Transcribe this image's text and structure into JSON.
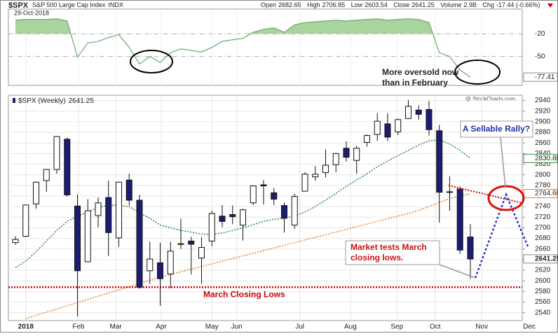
{
  "header": {
    "symbol": "$SPX",
    "name": "S&P 500 Large Cap Index",
    "exchange": "INDX",
    "date": "29-Oct-2018",
    "open_label": "Open",
    "high_label": "High",
    "low_label": "Low",
    "close_label": "Close",
    "volume_label": "Volume",
    "volume": "2.9B",
    "chg_label": "Chg",
    "chg": "-17.44 (-0.66%)",
    "credit": "@ StockCharts.com"
  },
  "annotations": {
    "oversold": [
      "More oversold now",
      "than in February"
    ],
    "rally": "A Sellable Rally?",
    "tests": [
      "Market tests March",
      "closing lows."
    ]
  },
  "chart_data": [
    {
      "type": "line",
      "x": [
        0,
        1,
        2,
        3,
        4,
        5,
        6,
        7,
        8,
        9,
        10,
        11,
        12,
        13,
        14,
        15,
        16,
        17,
        18,
        19,
        20,
        21,
        22,
        23,
        24,
        25,
        26,
        27,
        28,
        29,
        30,
        31,
        32,
        33,
        34,
        35,
        36,
        37,
        38,
        39,
        40,
        41,
        42,
        43,
        44
      ],
      "xlim": [
        -0.68,
        49.02
      ],
      "ylim": [
        -88.4,
        12.8
      ],
      "yticks": [
        -20,
        -50
      ],
      "shade_above": -20,
      "series": [
        {
          "color": "#6aa86a",
          "fill": "#a8d49e",
          "values": [
            -2,
            -1,
            -1,
            -1,
            0,
            -3,
            -51,
            -32,
            -30,
            -25,
            -21,
            -38,
            -60,
            -50,
            -58,
            -45,
            -40,
            -42,
            -44,
            -38,
            -30,
            -28,
            -26,
            -18,
            -14,
            -12,
            -18,
            -8,
            -5,
            -4,
            -3,
            -2,
            -3,
            -2,
            -1,
            0,
            -2,
            -1,
            0,
            -1,
            -5,
            -45,
            -50,
            -68,
            -77.41
          ]
        }
      ]
    },
    {
      "type": "candlestick",
      "legend": "$SPX (Weekly)",
      "x": [
        0,
        1,
        2,
        3,
        4,
        5,
        6,
        7,
        8,
        9,
        10,
        11,
        12,
        13,
        14,
        15,
        16,
        17,
        18,
        19,
        20,
        21,
        22,
        23,
        24,
        25,
        26,
        27,
        28,
        29,
        30,
        31,
        32,
        33,
        34,
        35,
        36,
        37,
        38,
        39,
        40,
        41,
        42,
        43,
        44
      ],
      "xlim": [
        -0.68,
        49.02
      ],
      "ylim": [
        2525,
        2950
      ],
      "yticks": [
        2540,
        2560,
        2580,
        2600,
        2620,
        2640,
        2660,
        2680,
        2700,
        2720,
        2740,
        2760,
        2780,
        2800,
        2820,
        2840,
        2860,
        2880,
        2900,
        2920,
        2940
      ],
      "xticks": [
        {
          "value": 1,
          "label": "2018"
        },
        {
          "value": 6.1,
          "label": "Feb"
        },
        {
          "value": 9.7,
          "label": "Mar"
        },
        {
          "value": 14.1,
          "label": "Apr"
        },
        {
          "value": 19,
          "label": "May"
        },
        {
          "value": 21.4,
          "label": "Jun"
        },
        {
          "value": 27.5,
          "label": "Jul"
        },
        {
          "value": 32.4,
          "label": "Aug"
        },
        {
          "value": 36.9,
          "label": "Sep"
        },
        {
          "value": 40.6,
          "label": "Oct"
        },
        {
          "value": 45.1,
          "label": "Nov"
        },
        {
          "value": 49.7,
          "label": "Dec"
        }
      ],
      "grid": true,
      "up_color": "#ffffff",
      "down_color": "#1c1c72",
      "series": [
        {
          "open": [
            2672,
            2684,
            2745,
            2789,
            2810,
            2867,
            2741,
            2636,
            2723,
            2757,
            2681,
            2790,
            2752,
            2619,
            2634,
            2613,
            2670,
            2675,
            2643,
            2675,
            2722,
            2725,
            2705,
            2747,
            2781,
            2766,
            2742,
            2705,
            2769,
            2796,
            2804,
            2819,
            2850,
            2827,
            2861,
            2876,
            2896,
            2881,
            2906,
            2922,
            2923,
            2883,
            2768,
            2773,
            2682.65
          ],
          "high": [
            2684,
            2743,
            2787,
            2810,
            2873,
            2870,
            2763,
            2754,
            2757,
            2789,
            2787,
            2802,
            2762,
            2674,
            2672,
            2674,
            2717,
            2683,
            2682,
            2732,
            2743,
            2742,
            2736,
            2779,
            2790,
            2775,
            2748,
            2764,
            2805,
            2816,
            2848,
            2841,
            2863,
            2855,
            2876,
            2916,
            2916,
            2906,
            2941,
            2931,
            2939,
            2894,
            2797,
            2778,
            2706.85
          ],
          "low": [
            2668,
            2683,
            2736,
            2768,
            2802,
            2759,
            2533,
            2635,
            2701,
            2647,
            2664,
            2742,
            2585,
            2594,
            2553,
            2586,
            2660,
            2612,
            2594,
            2665,
            2701,
            2707,
            2676,
            2743,
            2744,
            2743,
            2691,
            2698,
            2769,
            2789,
            2795,
            2805,
            2825,
            2802,
            2853,
            2864,
            2864,
            2875,
            2905,
            2904,
            2874,
            2710,
            2732,
            2651,
            2603.54
          ],
          "close": [
            2678,
            2743,
            2786,
            2810,
            2872,
            2762,
            2619,
            2732,
            2747,
            2691,
            2786,
            2752,
            2588,
            2641,
            2604,
            2656,
            2670,
            2669,
            2663,
            2727,
            2712,
            2721,
            2734,
            2779,
            2779,
            2754,
            2718,
            2759,
            2801,
            2801,
            2818,
            2840,
            2833,
            2850,
            2874,
            2901,
            2871,
            2904,
            2929,
            2914,
            2885,
            2767,
            2768,
            2658,
            2641.25
          ]
        }
      ],
      "overlays": [
        {
          "color": "#2e8b3a",
          "last_label": "2830.80",
          "values": [
            2625,
            2637,
            2655,
            2675,
            2695,
            2712,
            2722,
            2730,
            2738,
            2743,
            2742,
            2740,
            2728,
            2718,
            2705,
            2700,
            2695,
            2692,
            2688,
            2688,
            2690,
            2695,
            2700,
            2706,
            2712,
            2716,
            2718,
            2722,
            2730,
            2740,
            2752,
            2765,
            2778,
            2790,
            2802,
            2815,
            2826,
            2836,
            2846,
            2856,
            2864,
            2866,
            2858,
            2846,
            2830.8
          ]
        },
        {
          "color": "#e8802a",
          "last_label": "2764.60",
          "values": [
            null,
            2528,
            2535,
            2541,
            2547,
            2553,
            2559,
            2565,
            2571,
            2577,
            2583,
            2589,
            2595,
            2601,
            2607,
            2612,
            2617,
            2622,
            2627,
            2632,
            2637,
            2642,
            2647,
            2652,
            2657,
            2662,
            2667,
            2672,
            2677,
            2682,
            2687,
            2692,
            2697,
            2702,
            2707,
            2712,
            2717,
            2722,
            2727,
            2733,
            2740,
            2748,
            2755,
            2760,
            2764.6
          ]
        }
      ],
      "hline": {
        "value": 2588,
        "label": "March Closing Lows",
        "color": "#cc0000"
      }
    }
  ]
}
